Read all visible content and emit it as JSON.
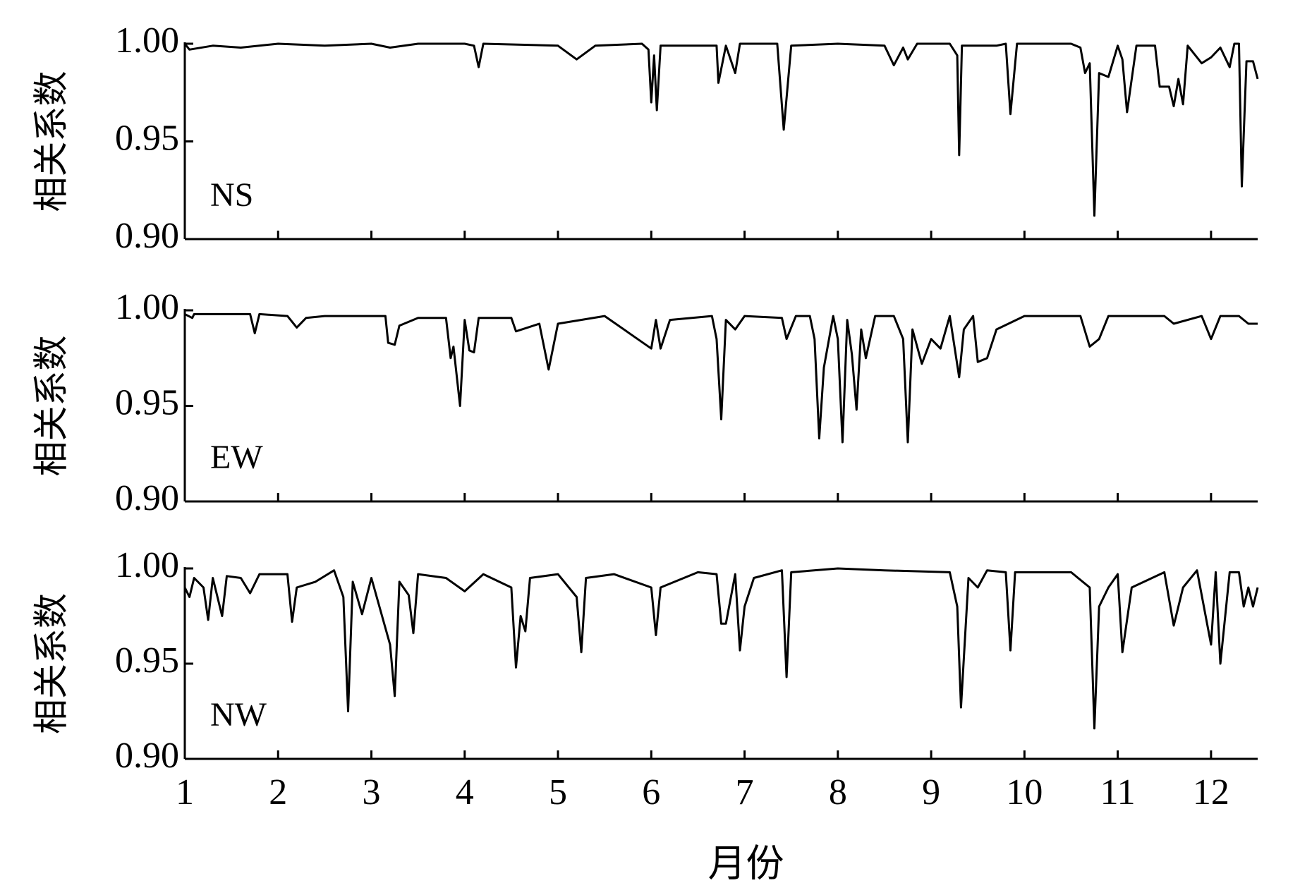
{
  "chart_data": [
    {
      "type": "line",
      "y_label": "相关系数",
      "annotation": "NS",
      "xlim": [
        1,
        12.5
      ],
      "xticks": [
        1,
        2,
        3,
        4,
        5,
        6,
        7,
        8,
        9,
        10,
        11,
        12
      ],
      "ylim": [
        0.9,
        1.0
      ],
      "yticks": [
        {
          "value": 0.9,
          "label": "0.90"
        },
        {
          "value": 0.95,
          "label": "0.95"
        },
        {
          "value": 1.0,
          "label": "1.00"
        }
      ],
      "x": [
        1.0,
        1.05,
        1.3,
        1.6,
        2.0,
        2.5,
        3.0,
        3.2,
        3.5,
        4.0,
        4.1,
        4.15,
        4.2,
        5.0,
        5.2,
        5.4,
        5.9,
        5.97,
        6.0,
        6.03,
        6.06,
        6.1,
        6.7,
        6.72,
        6.8,
        6.9,
        6.95,
        7.35,
        7.42,
        7.5,
        8.0,
        8.5,
        8.6,
        8.7,
        8.75,
        8.85,
        9.2,
        9.28,
        9.3,
        9.33,
        9.7,
        9.8,
        9.85,
        9.92,
        10.5,
        10.6,
        10.65,
        10.7,
        10.75,
        10.8,
        10.9,
        11.0,
        11.05,
        11.1,
        11.2,
        11.4,
        11.45,
        11.55,
        11.6,
        11.65,
        11.7,
        11.75,
        11.9,
        12.0,
        12.1,
        12.2,
        12.25,
        12.3,
        12.33,
        12.38,
        12.45,
        12.5
      ],
      "series": [
        {
          "color": "#000000",
          "values": [
            1.0,
            0.997,
            0.999,
            0.998,
            1.0,
            0.999,
            1.0,
            0.998,
            1.0,
            1.0,
            0.999,
            0.988,
            1.0,
            0.999,
            0.992,
            0.999,
            1.0,
            0.997,
            0.97,
            0.994,
            0.966,
            0.999,
            0.999,
            0.98,
            0.999,
            0.985,
            1.0,
            1.0,
            0.956,
            0.999,
            1.0,
            0.999,
            0.989,
            0.998,
            0.992,
            1.0,
            1.0,
            0.994,
            0.943,
            0.999,
            0.999,
            1.0,
            0.964,
            1.0,
            1.0,
            0.998,
            0.985,
            0.99,
            0.912,
            0.985,
            0.983,
            0.999,
            0.992,
            0.965,
            0.999,
            0.999,
            0.978,
            0.978,
            0.968,
            0.982,
            0.969,
            0.999,
            0.99,
            0.993,
            0.998,
            0.988,
            1.0,
            1.0,
            0.927,
            0.991,
            0.991,
            0.982
          ]
        }
      ]
    },
    {
      "type": "line",
      "y_label": "相关系数",
      "annotation": "EW",
      "xlim": [
        1,
        12.5
      ],
      "xticks": [
        1,
        2,
        3,
        4,
        5,
        6,
        7,
        8,
        9,
        10,
        11,
        12
      ],
      "ylim": [
        0.9,
        1.0
      ],
      "yticks": [
        {
          "value": 0.9,
          "label": "0.90"
        },
        {
          "value": 0.95,
          "label": "0.95"
        },
        {
          "value": 1.0,
          "label": "1.00"
        }
      ],
      "x": [
        1.0,
        1.08,
        1.1,
        1.7,
        1.75,
        1.8,
        2.1,
        2.2,
        2.3,
        2.5,
        3.15,
        3.18,
        3.25,
        3.3,
        3.5,
        3.8,
        3.85,
        3.88,
        3.95,
        4.0,
        4.05,
        4.1,
        4.15,
        4.5,
        4.55,
        4.8,
        4.9,
        5.0,
        5.5,
        6.0,
        6.05,
        6.1,
        6.2,
        6.65,
        6.7,
        6.75,
        6.8,
        6.9,
        7.0,
        7.4,
        7.45,
        7.55,
        7.7,
        7.75,
        7.8,
        7.85,
        7.95,
        8.0,
        8.05,
        8.1,
        8.15,
        8.2,
        8.25,
        8.3,
        8.4,
        8.6,
        8.7,
        8.75,
        8.8,
        8.9,
        9.0,
        9.1,
        9.2,
        9.3,
        9.35,
        9.45,
        9.5,
        9.6,
        9.7,
        10.0,
        10.6,
        10.7,
        10.8,
        10.9,
        11.5,
        11.6,
        11.9,
        12.0,
        12.1,
        12.3,
        12.4,
        12.5
      ],
      "series": [
        {
          "color": "#000000",
          "values": [
            0.998,
            0.996,
            0.998,
            0.998,
            0.988,
            0.998,
            0.997,
            0.991,
            0.996,
            0.997,
            0.997,
            0.983,
            0.982,
            0.992,
            0.996,
            0.996,
            0.975,
            0.981,
            0.95,
            0.995,
            0.979,
            0.978,
            0.996,
            0.996,
            0.989,
            0.993,
            0.969,
            0.993,
            0.997,
            0.98,
            0.995,
            0.98,
            0.995,
            0.997,
            0.985,
            0.943,
            0.995,
            0.99,
            0.997,
            0.996,
            0.985,
            0.997,
            0.997,
            0.985,
            0.933,
            0.97,
            0.997,
            0.985,
            0.931,
            0.995,
            0.977,
            0.948,
            0.99,
            0.975,
            0.997,
            0.997,
            0.985,
            0.931,
            0.99,
            0.972,
            0.985,
            0.98,
            0.997,
            0.965,
            0.99,
            0.997,
            0.973,
            0.975,
            0.99,
            0.997,
            0.997,
            0.981,
            0.985,
            0.997,
            0.997,
            0.993,
            0.997,
            0.985,
            0.997,
            0.997,
            0.993,
            0.993
          ]
        }
      ]
    },
    {
      "type": "line",
      "y_label": "相关系数",
      "annotation": "NW",
      "x_label": "月份",
      "xlim": [
        1,
        12.5
      ],
      "xticks": [
        1,
        2,
        3,
        4,
        5,
        6,
        7,
        8,
        9,
        10,
        11,
        12
      ],
      "ylim": [
        0.9,
        1.0
      ],
      "yticks": [
        {
          "value": 0.9,
          "label": "0.90"
        },
        {
          "value": 0.95,
          "label": "0.95"
        },
        {
          "value": 1.0,
          "label": "1.00"
        }
      ],
      "x": [
        1.0,
        1.05,
        1.1,
        1.2,
        1.25,
        1.3,
        1.4,
        1.45,
        1.6,
        1.7,
        1.8,
        2.1,
        2.15,
        2.2,
        2.4,
        2.6,
        2.7,
        2.75,
        2.8,
        2.9,
        3.0,
        3.2,
        3.25,
        3.3,
        3.4,
        3.45,
        3.5,
        3.8,
        4.0,
        4.2,
        4.5,
        4.55,
        4.6,
        4.65,
        4.7,
        5.0,
        5.2,
        5.25,
        5.3,
        5.6,
        6.0,
        6.05,
        6.1,
        6.5,
        6.7,
        6.75,
        6.8,
        6.9,
        6.95,
        7.0,
        7.1,
        7.4,
        7.45,
        7.5,
        8.0,
        8.5,
        9.2,
        9.28,
        9.32,
        9.4,
        9.5,
        9.6,
        9.8,
        9.85,
        9.9,
        10.5,
        10.7,
        10.75,
        10.8,
        10.9,
        11.0,
        11.05,
        11.15,
        11.5,
        11.6,
        11.7,
        11.85,
        12.0,
        12.05,
        12.1,
        12.2,
        12.3,
        12.35,
        12.4,
        12.45,
        12.5
      ],
      "series": [
        {
          "color": "#000000",
          "values": [
            0.99,
            0.985,
            0.995,
            0.99,
            0.973,
            0.995,
            0.975,
            0.996,
            0.995,
            0.987,
            0.997,
            0.997,
            0.972,
            0.99,
            0.993,
            0.999,
            0.985,
            0.925,
            0.993,
            0.976,
            0.995,
            0.96,
            0.933,
            0.993,
            0.986,
            0.966,
            0.997,
            0.995,
            0.988,
            0.997,
            0.99,
            0.948,
            0.975,
            0.967,
            0.995,
            0.997,
            0.985,
            0.956,
            0.995,
            0.997,
            0.99,
            0.965,
            0.99,
            0.998,
            0.997,
            0.971,
            0.971,
            0.997,
            0.957,
            0.98,
            0.995,
            0.999,
            0.943,
            0.998,
            1.0,
            0.999,
            0.998,
            0.98,
            0.927,
            0.995,
            0.99,
            0.999,
            0.998,
            0.957,
            0.998,
            0.998,
            0.99,
            0.916,
            0.98,
            0.99,
            0.997,
            0.956,
            0.99,
            0.998,
            0.97,
            0.99,
            0.999,
            0.96,
            0.998,
            0.95,
            0.998,
            0.998,
            0.98,
            0.99,
            0.98,
            0.99
          ]
        }
      ]
    }
  ]
}
